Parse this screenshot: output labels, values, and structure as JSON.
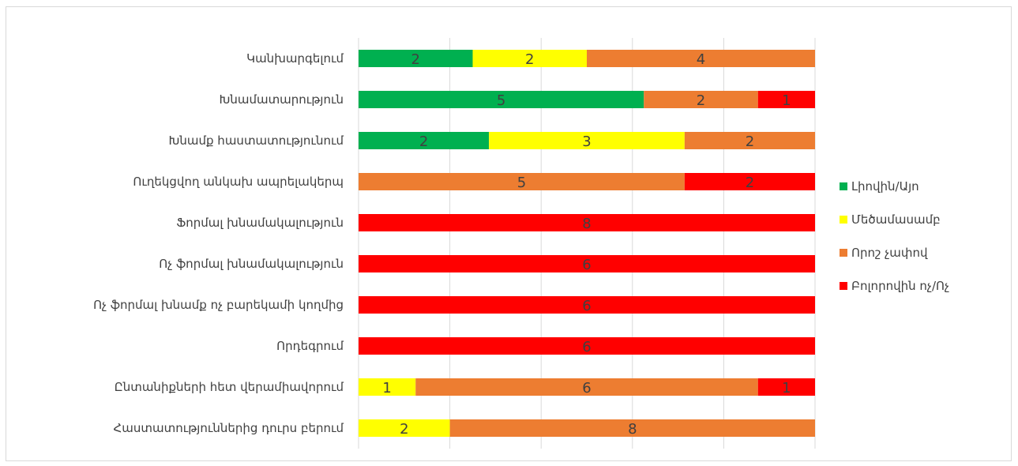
{
  "chart_data": {
    "type": "bar",
    "orientation": "horizontal",
    "stacked": "percent",
    "grid": true,
    "legend_position": "right",
    "categories": [
      "Կանխարգելում",
      "Խնամատարություն",
      "Խնամք հաստատությունում",
      "Ուղեկցվող անկախ ապրելակերպ",
      "Ֆորմալ խնամակալություն",
      "Ոչ ֆորմալ խնամակալություն",
      "Ոչ ֆորմալ խնամք ոչ բարեկամի կողմից",
      "Որդեգրում",
      "Ընտանիքների հետ վերամիավորում",
      "Հաստատություններից դուրս բերում"
    ],
    "series": [
      {
        "name": "Լիովին/Այո",
        "color": "#00b050",
        "values": [
          2,
          5,
          2,
          0,
          0,
          0,
          0,
          0,
          0,
          0
        ]
      },
      {
        "name": "Մեծամասամբ",
        "color": "#ffff00",
        "values": [
          2,
          0,
          3,
          0,
          0,
          0,
          0,
          0,
          1,
          2
        ]
      },
      {
        "name": "Որոշ չափով",
        "color": "#ed7d31",
        "values": [
          4,
          2,
          2,
          5,
          0,
          0,
          0,
          0,
          6,
          8
        ]
      },
      {
        "name": "Բոլորովին ոչ/Ոչ",
        "color": "#ff0000",
        "values": [
          0,
          1,
          0,
          2,
          8,
          6,
          6,
          6,
          1,
          0
        ]
      }
    ]
  }
}
